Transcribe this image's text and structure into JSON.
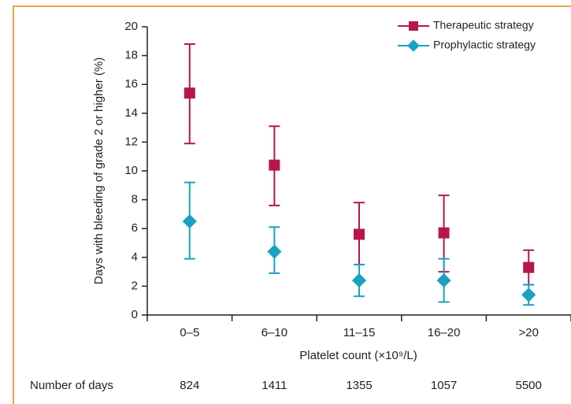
{
  "chart_data": {
    "type": "errorbar",
    "y_label": "Days with bleeding of grade 2 or higher (%)",
    "x_label": "Platelet count (×10⁹/L)",
    "categories": [
      "0–5",
      "6–10",
      "11–15",
      "16–20",
      ">20"
    ],
    "ylim": [
      0,
      20
    ],
    "yticks": [
      0,
      2,
      4,
      6,
      8,
      10,
      12,
      14,
      16,
      18,
      20
    ],
    "legend": "top-right",
    "series": [
      {
        "name": "Therapeutic strategy",
        "color": "#b5174b",
        "marker": "square",
        "values": [
          15.4,
          10.4,
          5.6,
          5.7,
          3.3
        ],
        "lower": [
          11.9,
          7.6,
          3.5,
          3.0,
          2.1
        ],
        "upper": [
          18.8,
          13.1,
          7.8,
          8.3,
          4.5
        ]
      },
      {
        "name": "Prophylactic strategy",
        "color": "#1aa2c0",
        "marker": "diamond",
        "values": [
          6.5,
          4.4,
          2.4,
          2.4,
          1.4
        ],
        "lower": [
          3.9,
          2.9,
          1.3,
          0.9,
          0.7
        ],
        "upper": [
          9.2,
          6.1,
          3.5,
          3.9,
          2.1
        ]
      }
    ],
    "days_label": "Number of days",
    "days": [
      824,
      1411,
      1355,
      1057,
      5500
    ]
  }
}
